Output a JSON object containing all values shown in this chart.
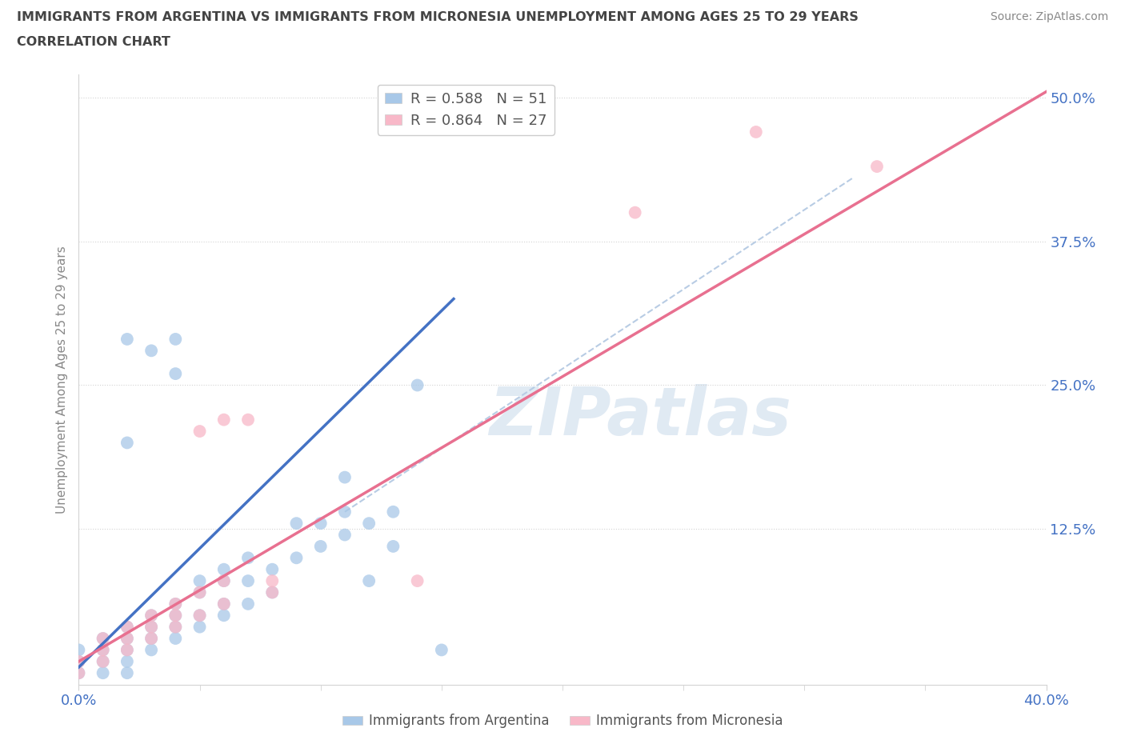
{
  "title_line1": "IMMIGRANTS FROM ARGENTINA VS IMMIGRANTS FROM MICRONESIA UNEMPLOYMENT AMONG AGES 25 TO 29 YEARS",
  "title_line2": "CORRELATION CHART",
  "source_text": "Source: ZipAtlas.com",
  "ylabel": "Unemployment Among Ages 25 to 29 years",
  "xlim": [
    0.0,
    0.4
  ],
  "ylim": [
    -0.01,
    0.52
  ],
  "ytick_labels": [
    "12.5%",
    "25.0%",
    "37.5%",
    "50.0%"
  ],
  "ytick_positions": [
    0.125,
    0.25,
    0.375,
    0.5
  ],
  "argentina_color": "#a8c8e8",
  "micronesia_color": "#f8b8c8",
  "argentina_line_color": "#4472c4",
  "micronesia_line_color": "#e87090",
  "diagonal_color": "#b8cce4",
  "R_argentina": 0.588,
  "N_argentina": 51,
  "R_micronesia": 0.864,
  "N_micronesia": 27,
  "watermark": "ZIPatlas",
  "argentina_scatter": [
    [
      0.0,
      0.0
    ],
    [
      0.0,
      0.01
    ],
    [
      0.0,
      0.02
    ],
    [
      0.01,
      0.0
    ],
    [
      0.01,
      0.01
    ],
    [
      0.01,
      0.02
    ],
    [
      0.01,
      0.03
    ],
    [
      0.02,
      0.0
    ],
    [
      0.02,
      0.01
    ],
    [
      0.02,
      0.02
    ],
    [
      0.02,
      0.03
    ],
    [
      0.02,
      0.04
    ],
    [
      0.03,
      0.02
    ],
    [
      0.03,
      0.03
    ],
    [
      0.03,
      0.04
    ],
    [
      0.03,
      0.05
    ],
    [
      0.04,
      0.03
    ],
    [
      0.04,
      0.04
    ],
    [
      0.04,
      0.05
    ],
    [
      0.04,
      0.06
    ],
    [
      0.05,
      0.04
    ],
    [
      0.05,
      0.05
    ],
    [
      0.05,
      0.07
    ],
    [
      0.05,
      0.08
    ],
    [
      0.06,
      0.05
    ],
    [
      0.06,
      0.06
    ],
    [
      0.06,
      0.08
    ],
    [
      0.06,
      0.09
    ],
    [
      0.07,
      0.06
    ],
    [
      0.07,
      0.08
    ],
    [
      0.07,
      0.1
    ],
    [
      0.08,
      0.07
    ],
    [
      0.08,
      0.09
    ],
    [
      0.09,
      0.1
    ],
    [
      0.09,
      0.13
    ],
    [
      0.1,
      0.11
    ],
    [
      0.1,
      0.13
    ],
    [
      0.11,
      0.12
    ],
    [
      0.11,
      0.14
    ],
    [
      0.12,
      0.08
    ],
    [
      0.12,
      0.13
    ],
    [
      0.13,
      0.11
    ],
    [
      0.13,
      0.14
    ],
    [
      0.02,
      0.29
    ],
    [
      0.03,
      0.28
    ],
    [
      0.04,
      0.26
    ],
    [
      0.04,
      0.29
    ],
    [
      0.02,
      0.2
    ],
    [
      0.11,
      0.17
    ],
    [
      0.14,
      0.25
    ],
    [
      0.15,
      0.02
    ]
  ],
  "micronesia_scatter": [
    [
      0.0,
      0.0
    ],
    [
      0.0,
      0.01
    ],
    [
      0.01,
      0.01
    ],
    [
      0.01,
      0.02
    ],
    [
      0.01,
      0.03
    ],
    [
      0.02,
      0.02
    ],
    [
      0.02,
      0.03
    ],
    [
      0.02,
      0.04
    ],
    [
      0.03,
      0.03
    ],
    [
      0.03,
      0.04
    ],
    [
      0.03,
      0.05
    ],
    [
      0.04,
      0.04
    ],
    [
      0.04,
      0.05
    ],
    [
      0.04,
      0.06
    ],
    [
      0.05,
      0.05
    ],
    [
      0.05,
      0.07
    ],
    [
      0.05,
      0.21
    ],
    [
      0.06,
      0.06
    ],
    [
      0.06,
      0.22
    ],
    [
      0.06,
      0.08
    ],
    [
      0.07,
      0.22
    ],
    [
      0.08,
      0.07
    ],
    [
      0.08,
      0.08
    ],
    [
      0.14,
      0.08
    ],
    [
      0.23,
      0.4
    ],
    [
      0.28,
      0.47
    ],
    [
      0.33,
      0.44
    ]
  ],
  "argentina_fit_x": [
    0.0,
    0.155
  ],
  "argentina_fit_y": [
    0.005,
    0.325
  ],
  "micronesia_fit_x": [
    0.0,
    0.4
  ],
  "micronesia_fit_y": [
    0.01,
    0.505
  ],
  "diagonal_fit_x": [
    0.11,
    0.32
  ],
  "diagonal_fit_y": [
    0.14,
    0.43
  ]
}
